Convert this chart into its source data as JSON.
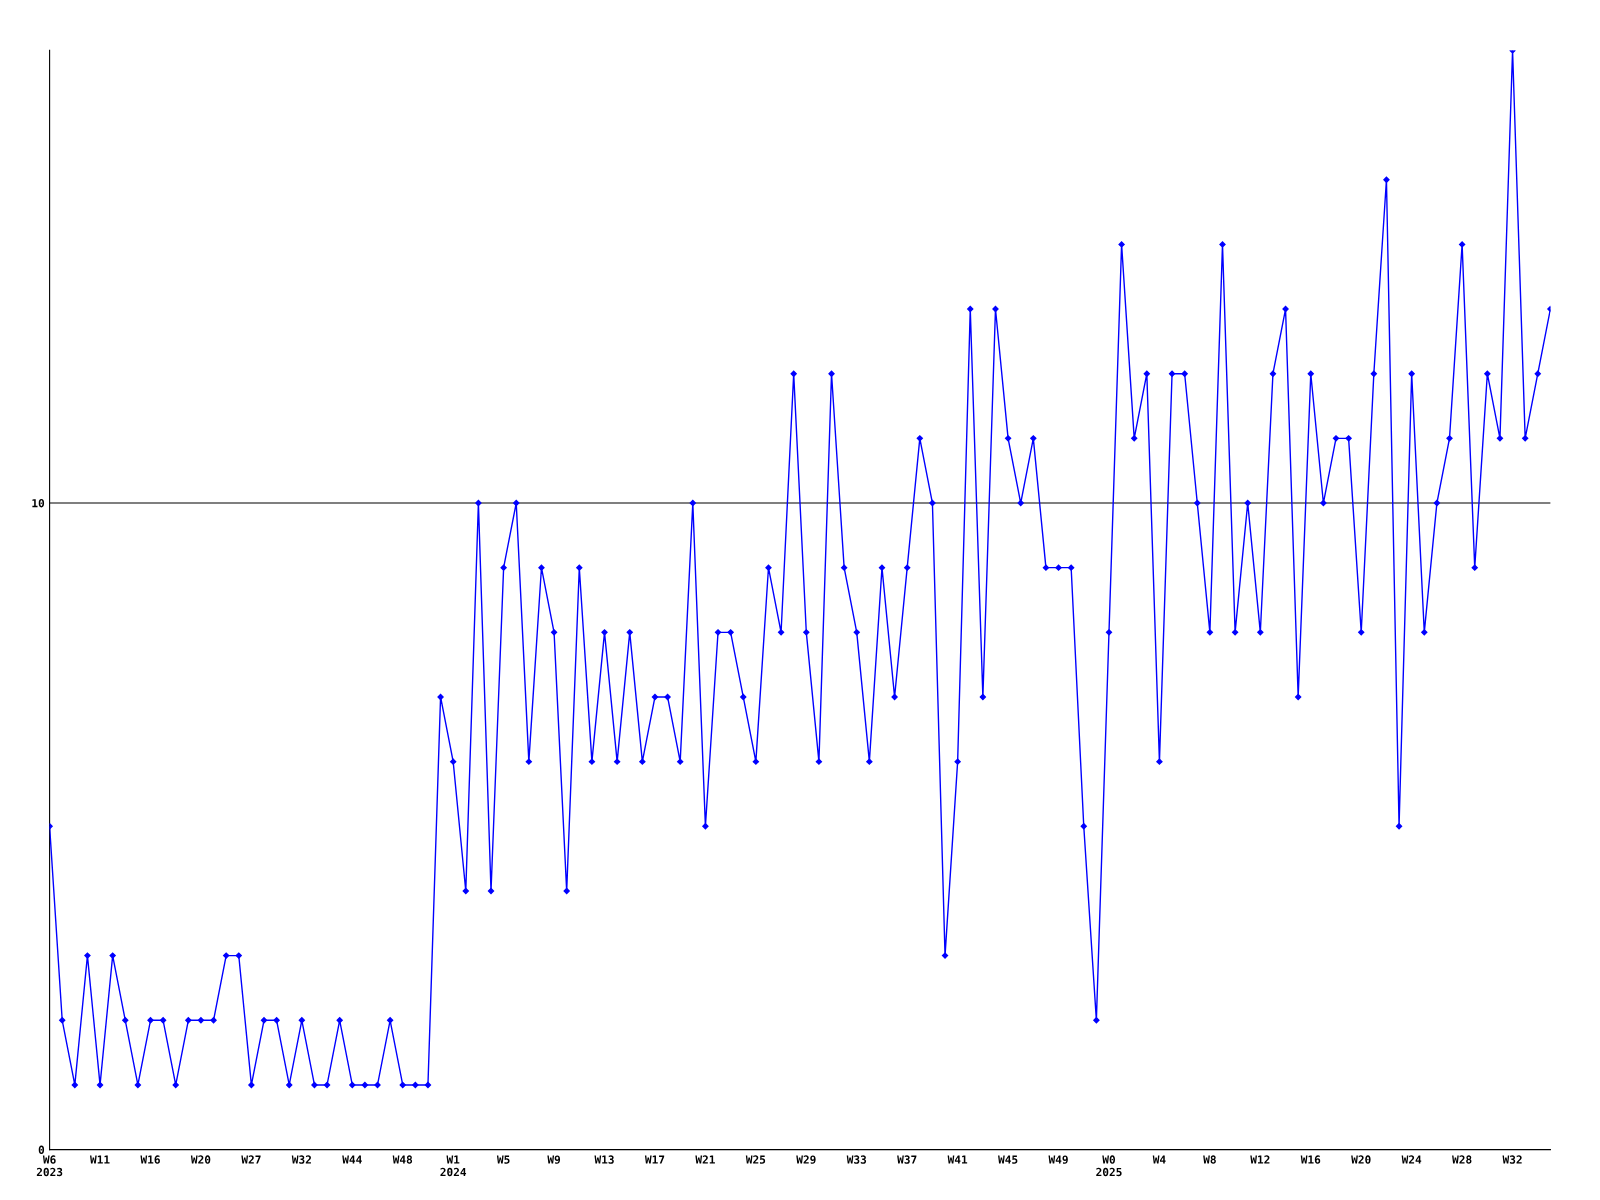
{
  "chart_data": {
    "type": "line",
    "categories": [
      "W6\n2023",
      null,
      null,
      null,
      "W11",
      null,
      null,
      null,
      "W16",
      null,
      null,
      null,
      "W20",
      null,
      null,
      null,
      "W27",
      null,
      null,
      null,
      "W32",
      null,
      null,
      null,
      "W44",
      null,
      null,
      null,
      "W48",
      null,
      null,
      null,
      "W1\n2024",
      null,
      null,
      null,
      "W5",
      null,
      null,
      null,
      "W9",
      null,
      null,
      null,
      "W13",
      null,
      null,
      null,
      "W17",
      null,
      null,
      null,
      "W21",
      null,
      null,
      null,
      "W25",
      null,
      null,
      null,
      "W29",
      null,
      null,
      null,
      "W33",
      null,
      null,
      null,
      "W37",
      null,
      null,
      null,
      "W41",
      null,
      null,
      null,
      "W45",
      null,
      null,
      null,
      "W49",
      null,
      null,
      null,
      "W0\n2025",
      null,
      null,
      null,
      "W4",
      null,
      null,
      null,
      "W8",
      null,
      null,
      null,
      "W12",
      null,
      null,
      null,
      "W16",
      null,
      null,
      null,
      "W20",
      null,
      null,
      null,
      "W24",
      null,
      null,
      null,
      "W28",
      null,
      null,
      null,
      "W32",
      null,
      null,
      null
    ],
    "series": [
      {
        "color": "#0000ff",
        "values": [
          5,
          2,
          1,
          3,
          1,
          3,
          2,
          1,
          2,
          2,
          1,
          2,
          2,
          2,
          3,
          3,
          1,
          2,
          2,
          1,
          2,
          1,
          1,
          2,
          1,
          1,
          1,
          2,
          1,
          1,
          1,
          7,
          6,
          4,
          10,
          4,
          9,
          10,
          6,
          9,
          8,
          4,
          9,
          6,
          8,
          6,
          8,
          6,
          7,
          7,
          6,
          10,
          5,
          8,
          8,
          7,
          6,
          9,
          8,
          12,
          8,
          6,
          12,
          9,
          8,
          6,
          9,
          7,
          9,
          11,
          10,
          3,
          6,
          13,
          7,
          13,
          11,
          10,
          11,
          9,
          9,
          9,
          5,
          2,
          8,
          14,
          11,
          12,
          6,
          12,
          12,
          10,
          8,
          14,
          8,
          10,
          8,
          12,
          13,
          7,
          12,
          10,
          11,
          11,
          8,
          12,
          15,
          5,
          12,
          8,
          10,
          11,
          14,
          9,
          12,
          11,
          17,
          11,
          12,
          13
        ]
      }
    ],
    "ylim": [
      0,
      17
    ],
    "yticks": [
      0,
      10
    ],
    "grid": "y",
    "marker": "diamond",
    "line_style": "solid",
    "legend": false
  }
}
